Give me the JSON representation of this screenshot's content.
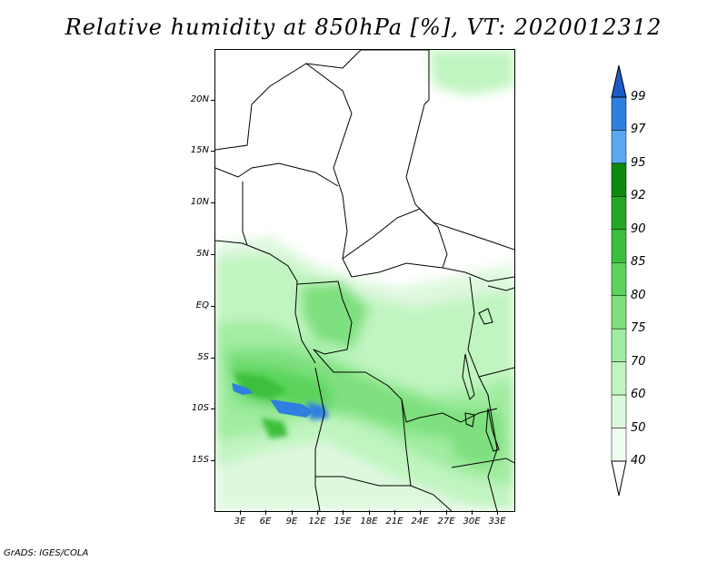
{
  "title": "Relative humidity at 850hPa [%], VT: 2020012312",
  "footer": "GrADS: IGES/COLA",
  "axes": {
    "lat_labels": [
      "20N",
      "15N",
      "10N",
      "5N",
      "EQ",
      "5S",
      "10S",
      "15S"
    ],
    "lon_labels": [
      "3E",
      "6E",
      "9E",
      "12E",
      "15E",
      "18E",
      "21E",
      "24E",
      "27E",
      "30E",
      "33E"
    ]
  },
  "colorbar": {
    "levels": [
      "99",
      "97",
      "95",
      "92",
      "90",
      "85",
      "80",
      "75",
      "70",
      "60",
      "50",
      "40"
    ],
    "colors": [
      "#1c5cc8",
      "#2f7fe0",
      "#5aa8f0",
      "#0d8a0d",
      "#24a824",
      "#3cc03c",
      "#5cd45c",
      "#7ee07e",
      "#a0eca0",
      "#c0f4c0",
      "#def8de",
      "#f2fdf2"
    ]
  },
  "map": {
    "units": "%",
    "field": "relative humidity",
    "level": "850hPa"
  }
}
